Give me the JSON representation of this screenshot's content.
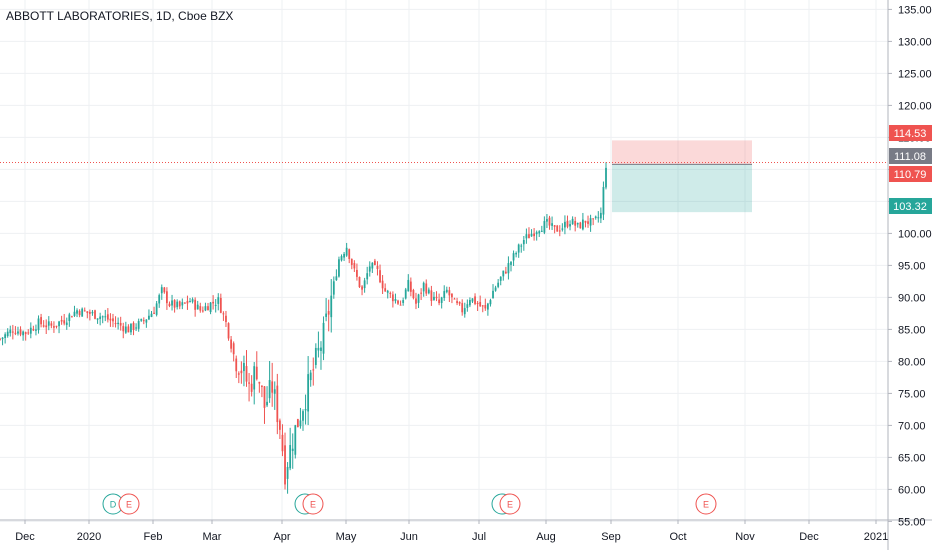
{
  "title": "ABBOTT LABORATORIES, 1D, Cboe BZX",
  "colors": {
    "up": "#26a69a",
    "down": "#ef5350",
    "grid": "#eef0f3",
    "axis": "#131722",
    "price_line": "#ef5350",
    "last_tag": "#787b86",
    "profit": "#26a69a",
    "loss": "#ef5350"
  },
  "chart_data": {
    "type": "candlestick",
    "ylim": [
      55,
      135
    ],
    "y_ticks": [
      55,
      60,
      65,
      70,
      75,
      80,
      85,
      90,
      95,
      100,
      105,
      110,
      115,
      120,
      125,
      130,
      135
    ],
    "x_ticks": [
      "Dec",
      "2020",
      "Feb",
      "Mar",
      "Apr",
      "May",
      "Jun",
      "Jul",
      "Aug",
      "Sep",
      "Oct",
      "Nov",
      "Dec",
      "2021"
    ],
    "price_closes": [
      [
        0,
        83.5
      ],
      [
        5,
        85
      ],
      [
        10,
        84.5
      ],
      [
        15,
        86
      ],
      [
        20,
        85.5
      ],
      [
        25,
        86.5
      ],
      [
        30,
        88
      ],
      [
        35,
        87.5
      ],
      [
        40,
        87
      ],
      [
        45,
        86
      ],
      [
        50,
        85
      ],
      [
        55,
        86
      ],
      [
        60,
        88
      ],
      [
        63,
        91
      ],
      [
        66,
        89
      ],
      [
        70,
        88.5
      ],
      [
        74,
        89.5
      ],
      [
        78,
        88
      ],
      [
        82,
        89
      ],
      [
        85,
        89.5
      ],
      [
        88,
        86
      ],
      [
        91,
        81
      ],
      [
        94,
        79
      ],
      [
        97,
        76
      ],
      [
        100,
        79
      ],
      [
        103,
        73
      ],
      [
        106,
        76
      ],
      [
        109,
        70
      ],
      [
        111,
        63
      ],
      [
        114,
        68
      ],
      [
        117,
        72
      ],
      [
        120,
        76
      ],
      [
        123,
        80
      ],
      [
        126,
        84
      ],
      [
        129,
        90
      ],
      [
        132,
        96
      ],
      [
        135,
        98
      ],
      [
        138,
        94
      ],
      [
        141,
        91
      ],
      [
        144,
        95
      ],
      [
        147,
        94
      ],
      [
        150,
        91
      ],
      [
        153,
        90
      ],
      [
        156,
        89
      ],
      [
        159,
        92
      ],
      [
        162,
        89
      ],
      [
        165,
        92
      ],
      [
        168,
        90
      ],
      [
        171,
        89
      ],
      [
        174,
        91
      ],
      [
        177,
        89
      ],
      [
        180,
        88
      ],
      [
        183,
        90
      ],
      [
        186,
        89
      ],
      [
        189,
        88
      ],
      [
        192,
        91
      ],
      [
        195,
        93
      ],
      [
        198,
        95
      ],
      [
        201,
        97
      ],
      [
        204,
        99
      ],
      [
        207,
        100
      ],
      [
        210,
        101
      ],
      [
        213,
        101.5
      ],
      [
        216,
        100.5
      ],
      [
        219,
        101
      ],
      [
        222,
        102
      ],
      [
        225,
        101
      ],
      [
        228,
        102
      ],
      [
        231,
        101.5
      ],
      [
        234,
        103
      ],
      [
        236,
        110.8
      ]
    ],
    "last_price": 111.08,
    "position": {
      "stop": 114.53,
      "entry": 110.79,
      "target": 103.32
    },
    "price_tags": [
      "114.53",
      "111.08",
      "110.79",
      "103.32"
    ],
    "events": [
      {
        "label": "D",
        "kind": "dividend"
      },
      {
        "label": "E",
        "kind": "earnings"
      },
      {
        "label": "",
        "kind": "dividend"
      },
      {
        "label": "E",
        "kind": "earnings"
      },
      {
        "label": "",
        "kind": "dividend"
      },
      {
        "label": "E",
        "kind": "earnings"
      },
      {
        "label": "E",
        "kind": "earnings"
      }
    ]
  }
}
